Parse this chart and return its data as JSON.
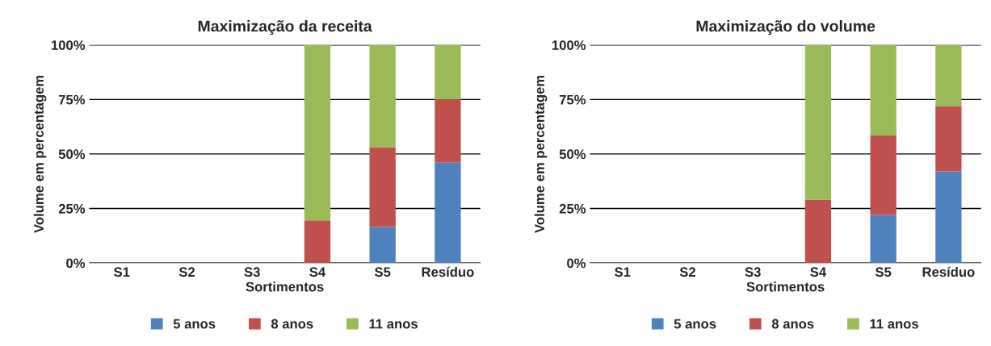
{
  "chart_data": [
    {
      "type": "bar",
      "stacked": true,
      "title": "Maximização da receita",
      "xlabel": "Sortimentos",
      "ylabel": "Volume em percentagem",
      "categories": [
        "S1",
        "S2",
        "S3",
        "S4",
        "S5",
        "Resíduo"
      ],
      "series": [
        {
          "name": "5 anos",
          "color": "#4f81bd",
          "values": [
            0,
            0,
            0,
            0,
            16.5,
            46
          ]
        },
        {
          "name": "8 anos",
          "color": "#c0504d",
          "values": [
            0,
            0,
            0,
            19.5,
            36.5,
            29
          ]
        },
        {
          "name": "11 anos",
          "color": "#9bbb59",
          "values": [
            0,
            0,
            0,
            80.5,
            47,
            25
          ]
        }
      ],
      "ylim": [
        0,
        100
      ],
      "yticks": [
        {
          "value": 0,
          "label": "0%"
        },
        {
          "value": 25,
          "label": "25%"
        },
        {
          "value": 50,
          "label": "50%"
        },
        {
          "value": 75,
          "label": "75%"
        },
        {
          "value": 100,
          "label": "100%"
        }
      ],
      "grid": "y",
      "legend": "bottom"
    },
    {
      "type": "bar",
      "stacked": true,
      "title": "Maximização do volume",
      "xlabel": "Sortimentos",
      "ylabel": "Volume em percentagem",
      "categories": [
        "S1",
        "S2",
        "S3",
        "S4",
        "S5",
        "Resíduo"
      ],
      "series": [
        {
          "name": "5 anos",
          "color": "#4f81bd",
          "values": [
            0,
            0,
            0,
            0,
            22,
            42
          ]
        },
        {
          "name": "8 anos",
          "color": "#c0504d",
          "values": [
            0,
            0,
            0,
            29,
            36.5,
            30
          ]
        },
        {
          "name": "11 anos",
          "color": "#9bbb59",
          "values": [
            0,
            0,
            0,
            71,
            41.5,
            28
          ]
        }
      ],
      "ylim": [
        0,
        100
      ],
      "yticks": [
        {
          "value": 0,
          "label": "0%"
        },
        {
          "value": 25,
          "label": "25%"
        },
        {
          "value": 50,
          "label": "50%"
        },
        {
          "value": 75,
          "label": "75%"
        },
        {
          "value": 100,
          "label": "100%"
        }
      ],
      "grid": "y",
      "legend": "bottom"
    }
  ]
}
